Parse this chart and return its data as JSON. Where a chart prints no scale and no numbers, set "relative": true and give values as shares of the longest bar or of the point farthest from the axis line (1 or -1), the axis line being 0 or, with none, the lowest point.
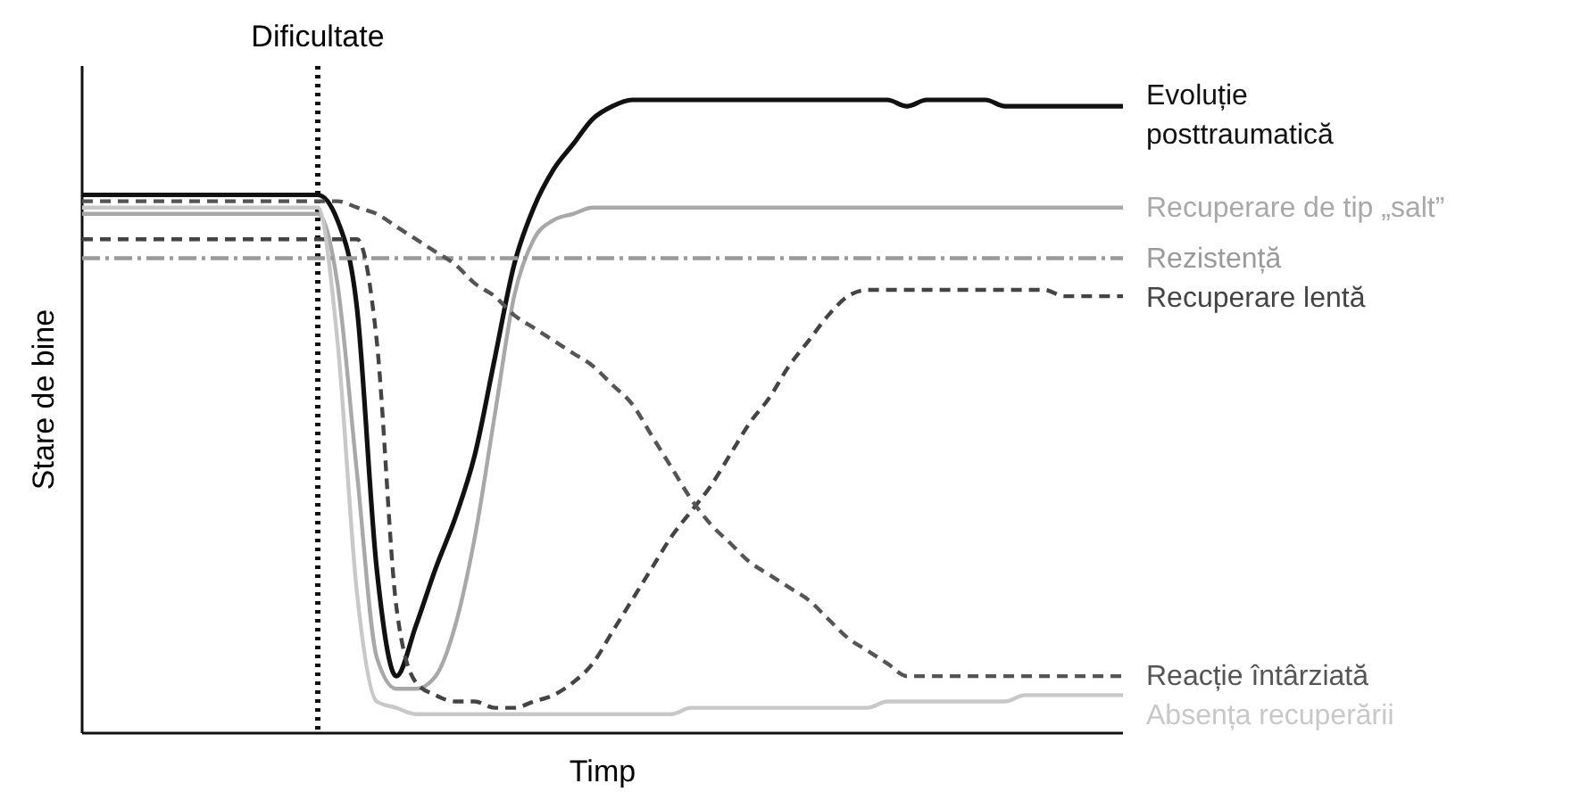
{
  "chart_data": {
    "type": "line",
    "relative": true,
    "xlabel": "Timp",
    "ylabel": "Stare de bine",
    "legend": false,
    "annotations": [
      "Dificultate"
    ],
    "categories": [
      null,
      null,
      null,
      null,
      null,
      null,
      null,
      null,
      null,
      null,
      null,
      null,
      null,
      null,
      null,
      null,
      null,
      null,
      null,
      null,
      null,
      null,
      null,
      null,
      null,
      null,
      null,
      null,
      null,
      null,
      null,
      null,
      null,
      null,
      null,
      null,
      null,
      null,
      null,
      null,
      null,
      null,
      null,
      null,
      null,
      null,
      null,
      null,
      null,
      null,
      null,
      null,
      null,
      null
    ],
    "series": [
      {
        "name": "Evoluție\nposttraumatică",
        "color": "#111111",
        "line_style": "solid",
        "values": [
          0.85,
          0.85,
          0.85,
          0.85,
          0.85,
          0.85,
          0.85,
          0.85,
          0.85,
          0.85,
          0.85,
          0.85,
          0.85,
          0.81,
          0.67,
          0.26,
          0.09,
          0.17,
          0.26,
          0.34,
          0.44,
          0.59,
          0.74,
          0.83,
          0.89,
          0.93,
          0.97,
          0.99,
          1,
          1,
          1,
          1,
          1,
          1,
          1,
          1,
          1,
          1,
          1,
          1,
          1,
          1,
          0.99,
          1,
          1,
          1,
          1,
          0.99,
          0.99,
          0.99,
          0.99,
          0.99,
          0.99,
          0.99
        ]
      },
      {
        "name": "Recuperare de tip „salt”",
        "color": "#a8a8a8",
        "line_style": "solid",
        "values": [
          0.82,
          0.82,
          0.82,
          0.82,
          0.82,
          0.82,
          0.82,
          0.82,
          0.82,
          0.82,
          0.82,
          0.82,
          0.82,
          0.71,
          0.41,
          0.12,
          0.07,
          0.07,
          0.09,
          0.17,
          0.31,
          0.5,
          0.69,
          0.78,
          0.81,
          0.82,
          0.83,
          0.83,
          0.83,
          0.83,
          0.83,
          0.83,
          0.83,
          0.83,
          0.83,
          0.83,
          0.83,
          0.83,
          0.83,
          0.83,
          0.83,
          0.83,
          0.83,
          0.83,
          0.83,
          0.83,
          0.83,
          0.83,
          0.83,
          0.83,
          0.83,
          0.83,
          0.83,
          0.83
        ]
      },
      {
        "name": "Rezistență",
        "color": "#9a9a9a",
        "line_style": "dashdot",
        "values": [
          0.75,
          0.75,
          0.75,
          0.75,
          0.75,
          0.75,
          0.75,
          0.75,
          0.75,
          0.75,
          0.75,
          0.75,
          0.75,
          0.75,
          0.75,
          0.75,
          0.75,
          0.75,
          0.75,
          0.75,
          0.75,
          0.75,
          0.75,
          0.75,
          0.75,
          0.75,
          0.75,
          0.75,
          0.75,
          0.75,
          0.75,
          0.75,
          0.75,
          0.75,
          0.75,
          0.75,
          0.75,
          0.75,
          0.75,
          0.75,
          0.75,
          0.75,
          0.75,
          0.75,
          0.75,
          0.75,
          0.75,
          0.75,
          0.75,
          0.75,
          0.75,
          0.75,
          0.75,
          0.75
        ]
      },
      {
        "name": "Recuperare lentă",
        "color": "#444444",
        "line_style": "dashed",
        "values": [
          0.78,
          0.78,
          0.78,
          0.78,
          0.78,
          0.78,
          0.78,
          0.78,
          0.78,
          0.78,
          0.78,
          0.78,
          0.78,
          0.78,
          0.78,
          0.62,
          0.2,
          0.08,
          0.06,
          0.05,
          0.05,
          0.04,
          0.04,
          0.05,
          0.06,
          0.08,
          0.11,
          0.16,
          0.21,
          0.26,
          0.31,
          0.35,
          0.39,
          0.44,
          0.49,
          0.53,
          0.58,
          0.62,
          0.66,
          0.69,
          0.7,
          0.7,
          0.7,
          0.7,
          0.7,
          0.7,
          0.7,
          0.7,
          0.7,
          0.7,
          0.69,
          0.69,
          0.69,
          0.69
        ]
      },
      {
        "name": "Reacție întârziată",
        "color": "#555555",
        "line_style": "dashed",
        "values": [
          0.84,
          0.84,
          0.84,
          0.84,
          0.84,
          0.84,
          0.84,
          0.84,
          0.84,
          0.84,
          0.84,
          0.84,
          0.84,
          0.84,
          0.83,
          0.82,
          0.8,
          0.78,
          0.76,
          0.74,
          0.71,
          0.69,
          0.66,
          0.64,
          0.62,
          0.6,
          0.58,
          0.55,
          0.52,
          0.47,
          0.42,
          0.37,
          0.33,
          0.3,
          0.27,
          0.25,
          0.23,
          0.21,
          0.18,
          0.15,
          0.13,
          0.11,
          0.09,
          0.09,
          0.09,
          0.09,
          0.09,
          0.09,
          0.09,
          0.09,
          0.09,
          0.09,
          0.09,
          0.09
        ]
      },
      {
        "name": "Absența recuperării",
        "color": "#c8c8c8",
        "line_style": "solid",
        "values": [
          0.83,
          0.83,
          0.83,
          0.83,
          0.83,
          0.83,
          0.83,
          0.83,
          0.83,
          0.83,
          0.83,
          0.83,
          0.83,
          0.62,
          0.22,
          0.05,
          0.04,
          0.03,
          0.03,
          0.03,
          0.03,
          0.03,
          0.03,
          0.03,
          0.03,
          0.03,
          0.03,
          0.03,
          0.03,
          0.03,
          0.03,
          0.04,
          0.04,
          0.04,
          0.04,
          0.04,
          0.04,
          0.04,
          0.04,
          0.04,
          0.04,
          0.05,
          0.05,
          0.05,
          0.05,
          0.05,
          0.05,
          0.05,
          0.06,
          0.06,
          0.06,
          0.06,
          0.06,
          0.06
        ]
      }
    ]
  }
}
